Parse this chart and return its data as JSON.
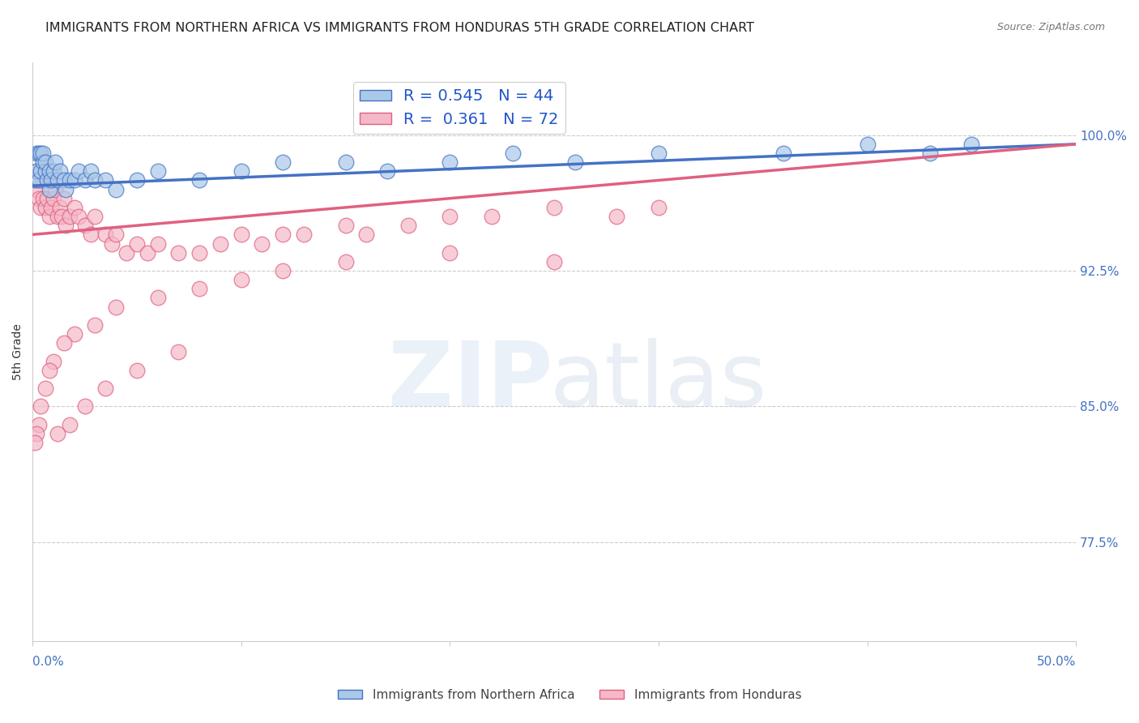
{
  "title": "IMMIGRANTS FROM NORTHERN AFRICA VS IMMIGRANTS FROM HONDURAS 5TH GRADE CORRELATION CHART",
  "source": "Source: ZipAtlas.com",
  "ylabel": "5th Grade",
  "ytick_labels": [
    "77.5%",
    "85.0%",
    "92.5%",
    "100.0%"
  ],
  "ytick_values": [
    0.775,
    0.85,
    0.925,
    1.0
  ],
  "xlim": [
    0.0,
    0.5
  ],
  "ylim": [
    0.72,
    1.04
  ],
  "blue_R": 0.545,
  "blue_N": 44,
  "pink_R": 0.361,
  "pink_N": 72,
  "blue_color": "#aac8e8",
  "pink_color": "#f5b8c8",
  "blue_line_color": "#4472c4",
  "pink_line_color": "#e06080",
  "legend_blue_label": "Immigrants from Northern Africa",
  "legend_pink_label": "Immigrants from Honduras",
  "blue_scatter_x": [
    0.001,
    0.002,
    0.002,
    0.003,
    0.003,
    0.004,
    0.004,
    0.005,
    0.005,
    0.006,
    0.006,
    0.007,
    0.008,
    0.008,
    0.009,
    0.01,
    0.011,
    0.012,
    0.013,
    0.015,
    0.016,
    0.018,
    0.02,
    0.022,
    0.025,
    0.028,
    0.03,
    0.035,
    0.04,
    0.05,
    0.06,
    0.08,
    0.1,
    0.12,
    0.15,
    0.17,
    0.2,
    0.23,
    0.26,
    0.3,
    0.36,
    0.4,
    0.43,
    0.45
  ],
  "blue_scatter_y": [
    0.975,
    0.98,
    0.99,
    0.975,
    0.99,
    0.98,
    0.99,
    0.985,
    0.99,
    0.98,
    0.985,
    0.975,
    0.97,
    0.98,
    0.975,
    0.98,
    0.985,
    0.975,
    0.98,
    0.975,
    0.97,
    0.975,
    0.975,
    0.98,
    0.975,
    0.98,
    0.975,
    0.975,
    0.97,
    0.975,
    0.98,
    0.975,
    0.98,
    0.985,
    0.985,
    0.98,
    0.985,
    0.99,
    0.985,
    0.99,
    0.99,
    0.995,
    0.99,
    0.995
  ],
  "pink_scatter_x": [
    0.001,
    0.002,
    0.002,
    0.003,
    0.003,
    0.004,
    0.005,
    0.005,
    0.006,
    0.007,
    0.007,
    0.008,
    0.009,
    0.01,
    0.011,
    0.012,
    0.013,
    0.014,
    0.015,
    0.016,
    0.018,
    0.02,
    0.022,
    0.025,
    0.028,
    0.03,
    0.035,
    0.038,
    0.04,
    0.045,
    0.05,
    0.055,
    0.06,
    0.07,
    0.08,
    0.09,
    0.1,
    0.11,
    0.12,
    0.13,
    0.15,
    0.16,
    0.18,
    0.2,
    0.22,
    0.25,
    0.28,
    0.3,
    0.15,
    0.2,
    0.25,
    0.12,
    0.1,
    0.08,
    0.06,
    0.04,
    0.03,
    0.02,
    0.015,
    0.01,
    0.008,
    0.006,
    0.004,
    0.003,
    0.002,
    0.001,
    0.07,
    0.05,
    0.035,
    0.025,
    0.018,
    0.012
  ],
  "pink_scatter_y": [
    0.975,
    0.97,
    0.98,
    0.965,
    0.975,
    0.96,
    0.965,
    0.975,
    0.96,
    0.965,
    0.975,
    0.955,
    0.96,
    0.965,
    0.97,
    0.955,
    0.96,
    0.955,
    0.965,
    0.95,
    0.955,
    0.96,
    0.955,
    0.95,
    0.945,
    0.955,
    0.945,
    0.94,
    0.945,
    0.935,
    0.94,
    0.935,
    0.94,
    0.935,
    0.935,
    0.94,
    0.945,
    0.94,
    0.945,
    0.945,
    0.95,
    0.945,
    0.95,
    0.955,
    0.955,
    0.96,
    0.955,
    0.96,
    0.93,
    0.935,
    0.93,
    0.925,
    0.92,
    0.915,
    0.91,
    0.905,
    0.895,
    0.89,
    0.885,
    0.875,
    0.87,
    0.86,
    0.85,
    0.84,
    0.835,
    0.83,
    0.88,
    0.87,
    0.86,
    0.85,
    0.84,
    0.835
  ],
  "blue_trendline_x": [
    0.0,
    0.5
  ],
  "blue_trendline_y": [
    0.972,
    0.995
  ],
  "pink_trendline_x": [
    0.0,
    0.5
  ],
  "pink_trendline_y": [
    0.945,
    0.995
  ]
}
